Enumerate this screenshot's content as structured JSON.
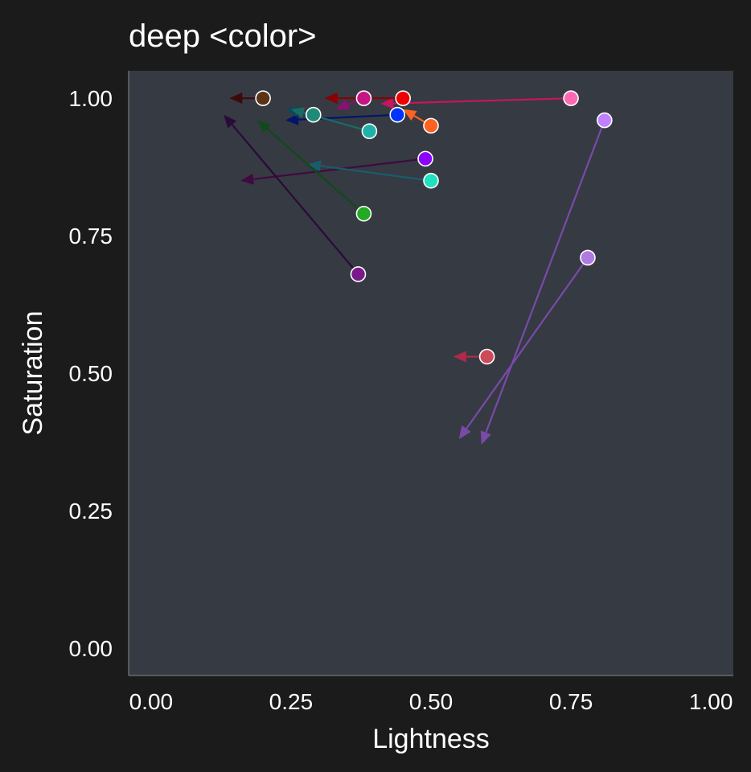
{
  "chart_data": {
    "type": "scatter",
    "title": "deep <color>",
    "xlabel": "Lightness",
    "ylabel": "Saturation",
    "xlim": [
      -0.04,
      1.04
    ],
    "ylim": [
      -0.05,
      1.05
    ],
    "xticks": [
      "0.00",
      "0.25",
      "0.50",
      "0.75",
      "1.00"
    ],
    "yticks": [
      "0.00",
      "0.25",
      "0.50",
      "0.75",
      "1.00"
    ],
    "xtick_values": [
      0,
      0.25,
      0.5,
      0.75,
      1.0
    ],
    "ytick_values": [
      0,
      0.25,
      0.5,
      0.75,
      1.0
    ],
    "grid": false,
    "background": "#363a43",
    "figure_background": "#1b1b1b",
    "arrows": [
      {
        "from": [
          0.75,
          1.0
        ],
        "to": [
          0.41,
          0.99
        ],
        "point_color": "#ff69b4",
        "line_color": "#c71560"
      },
      {
        "from": [
          0.45,
          1.0
        ],
        "to": [
          0.31,
          1.0
        ],
        "point_color": "#ee0000",
        "line_color": "#8b0000"
      },
      {
        "from": [
          0.38,
          1.0
        ],
        "to": [
          0.33,
          0.98
        ],
        "point_color": "#c71585",
        "line_color": "#8b1070"
      },
      {
        "from": [
          0.2,
          1.0
        ],
        "to": [
          0.14,
          1.0
        ],
        "point_color": "#5c3317",
        "line_color": "#3d0a0a"
      },
      {
        "from": [
          0.5,
          0.95
        ],
        "to": [
          0.45,
          0.98
        ],
        "point_color": "#ff6120",
        "line_color": "#ff6120"
      },
      {
        "from": [
          0.44,
          0.97
        ],
        "to": [
          0.24,
          0.96
        ],
        "point_color": "#0033ff",
        "line_color": "#00156b"
      },
      {
        "from": [
          0.29,
          0.97
        ],
        "to": [
          0.24,
          0.98
        ],
        "point_color": "#1f8a7a",
        "line_color": "#0a4a5a"
      },
      {
        "from": [
          0.39,
          0.94
        ],
        "to": [
          0.25,
          0.98
        ],
        "point_color": "#20b2aa",
        "line_color": "#1a6b66"
      },
      {
        "from": [
          0.81,
          0.96
        ],
        "to": [
          0.59,
          0.37
        ],
        "point_color": "#c080ff",
        "line_color": "#7a4aa8"
      },
      {
        "from": [
          0.49,
          0.89
        ],
        "to": [
          0.16,
          0.85
        ],
        "point_color": "#8b00ff",
        "line_color": "#400a40"
      },
      {
        "from": [
          0.5,
          0.85
        ],
        "to": [
          0.28,
          0.88
        ],
        "point_color": "#20e0c0",
        "line_color": "#1a5c6c"
      },
      {
        "from": [
          0.38,
          0.79
        ],
        "to": [
          0.19,
          0.96
        ],
        "point_color": "#22aa22",
        "line_color": "#0f4a1a"
      },
      {
        "from": [
          0.37,
          0.68
        ],
        "to": [
          0.13,
          0.97
        ],
        "point_color": "#7a1a8a",
        "line_color": "#2a0a3a"
      },
      {
        "from": [
          0.78,
          0.71
        ],
        "to": [
          0.55,
          0.38
        ],
        "point_color": "#b07ae0",
        "line_color": "#7a4aa8"
      },
      {
        "from": [
          0.6,
          0.53
        ],
        "to": [
          0.54,
          0.53
        ],
        "point_color": "#cc4a5a",
        "line_color": "#b02a4a"
      }
    ]
  }
}
